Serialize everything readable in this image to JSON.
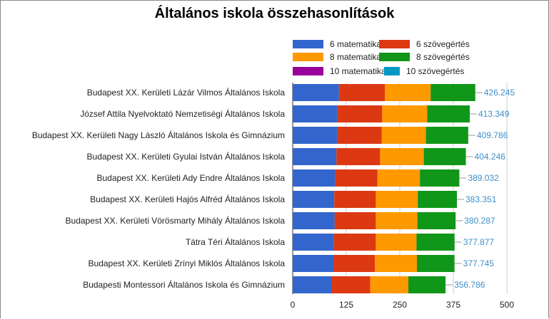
{
  "chart_data": {
    "type": "bar",
    "orientation": "horizontal",
    "stacked": true,
    "title": "Általános iskola összehasonlítások",
    "categories": [
      "Budapest XX. Kerületi Lázár Vilmos Általános Iskola",
      "József Attila Nyelvoktató Nemzetiségi Általános Iskola",
      "Budapest XX. Kerületi Nagy László Általános Iskola és Gimnázium",
      "Budapest XX. Kerületi Gyulai István Általános Iskola",
      "Budapest XX. Kerületi Ady Endre Általános Iskola",
      "Budapest XX. Kerületi Hajós Alfréd Általános Iskola",
      "Budapest XX. Kerületi Vörösmarty Mihály Általános Iskola",
      "Tátra Téri Általános Iskola",
      "Budapest XX. Kerületi Zrínyi Miklós Általános Iskola",
      "Budapesti Montessori Általános Iskola és Gimnázium"
    ],
    "series": [
      {
        "name": "6 matematika",
        "color": "#3366cc",
        "values": [
          108,
          104,
          104,
          102,
          99,
          97,
          98,
          96,
          95,
          90
        ]
      },
      {
        "name": "6 szövegértés",
        "color": "#dc3912",
        "values": [
          107,
          105,
          104,
          102,
          99,
          97,
          96,
          98,
          97,
          91
        ]
      },
      {
        "name": "8 matematika",
        "color": "#ff9900",
        "values": [
          107,
          105,
          103,
          102,
          99,
          98,
          97,
          95,
          98,
          89
        ]
      },
      {
        "name": "8 szövegértés",
        "color": "#109618",
        "values": [
          104.245,
          99.349,
          98.786,
          98.246,
          92.032,
          91.351,
          89.287,
          88.877,
          87.745,
          86.786
        ]
      },
      {
        "name": "10 matematika",
        "color": "#990099",
        "values": [
          0,
          0,
          0,
          0,
          0,
          0,
          0,
          0,
          0,
          0
        ]
      },
      {
        "name": "10 szövegértés",
        "color": "#0099c6",
        "values": [
          0,
          0,
          0,
          0,
          0,
          0,
          0,
          0,
          0,
          0
        ]
      }
    ],
    "totals": [
      "426.245",
      "413.349",
      "409.786",
      "404.246",
      "389.032",
      "383.351",
      "380.287",
      "377.877",
      "377.745",
      "356.786"
    ],
    "xlim": [
      0,
      500
    ],
    "x_ticks": [
      "0",
      "125",
      "250",
      "375",
      "500"
    ],
    "grid": true,
    "legend_position": "top"
  }
}
